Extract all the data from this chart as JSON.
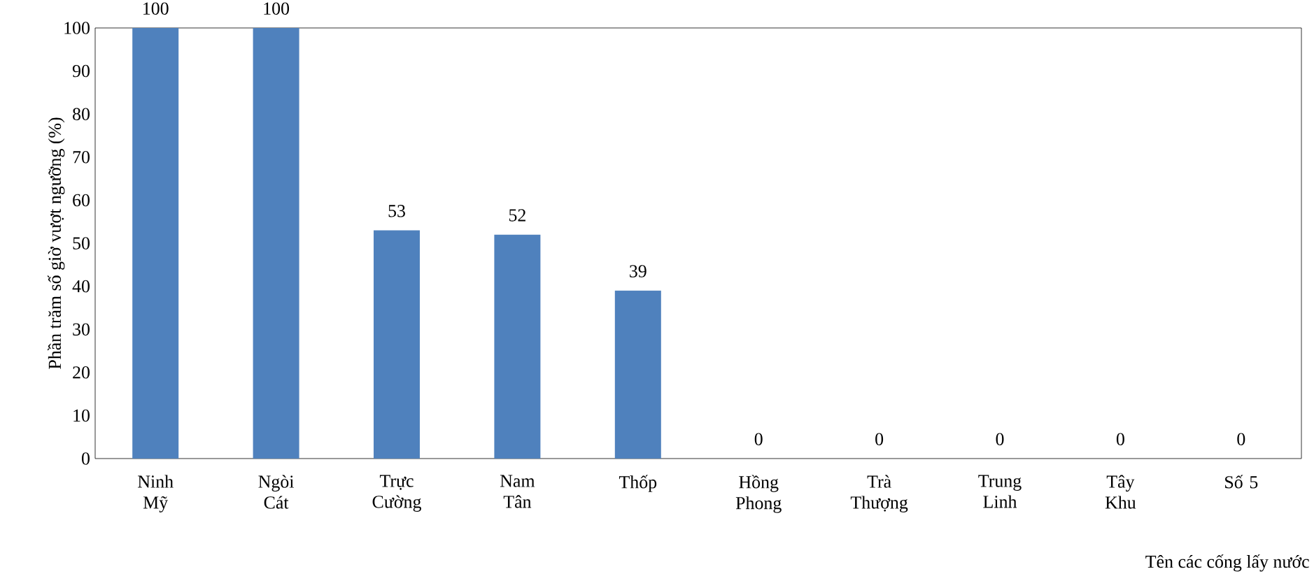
{
  "chart_data": {
    "type": "bar",
    "xlabel": "Tên các cống lấy nước",
    "ylabel": "Phần trăm số giờ vượt ngưỡng (%)",
    "categories": [
      "Ninh Mỹ",
      "Ngòi Cát",
      "Trực Cường",
      "Nam Tân",
      "Thốp",
      "Hồng Phong",
      "Trà Thượng",
      "Trung Linh",
      "Tây Khu",
      "Số 5"
    ],
    "values": [
      100,
      100,
      53,
      52,
      39,
      0,
      0,
      0,
      0,
      0
    ],
    "color": "#4f81bd",
    "ylim": [
      0,
      100
    ],
    "yticks": [
      0,
      10,
      20,
      30,
      40,
      50,
      60,
      70,
      80,
      90,
      100
    ],
    "data_labels": true
  }
}
